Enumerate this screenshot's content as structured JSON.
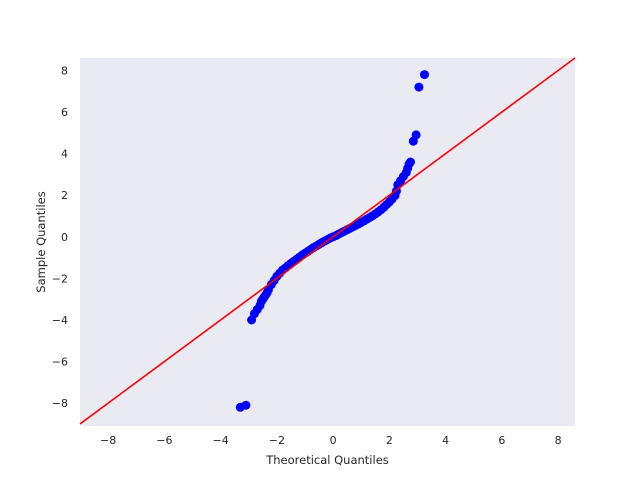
{
  "chart_data": {
    "type": "scatter",
    "title": "",
    "xlabel": "Theoretical Quantiles",
    "ylabel": "Sample Quantiles",
    "xlim": [
      -9.0,
      8.6
    ],
    "ylim": [
      -9.1,
      8.6
    ],
    "xticks": [
      -8,
      -6,
      -4,
      -2,
      0,
      2,
      4,
      6,
      8
    ],
    "yticks": [
      -8,
      -6,
      -4,
      -2,
      0,
      2,
      4,
      6,
      8
    ],
    "xtick_labels": [
      "−8",
      "−6",
      "−4",
      "−2",
      "0",
      "2",
      "4",
      "6",
      "8"
    ],
    "ytick_labels": [
      "−8",
      "−6",
      "−4",
      "−2",
      "0",
      "2",
      "4",
      "6",
      "8"
    ],
    "grid": false,
    "background": "#eaeaf2",
    "reference_line": {
      "slope": 1,
      "intercept": 0,
      "color": "#ff0000"
    },
    "series": [
      {
        "color": "#0000ff",
        "points": [
          [
            -3.3,
            -8.2
          ],
          [
            -3.1,
            -8.1
          ],
          [
            -2.9,
            -4.0
          ],
          [
            -2.8,
            -3.7
          ],
          [
            -2.7,
            -3.5
          ],
          [
            -2.6,
            -3.3
          ],
          [
            -2.55,
            -3.1
          ],
          [
            -2.5,
            -3.0
          ],
          [
            -2.45,
            -2.9
          ],
          [
            -2.4,
            -2.8
          ],
          [
            -2.35,
            -2.7
          ],
          [
            -2.3,
            -2.55
          ],
          [
            -2.2,
            -2.3
          ],
          [
            -2.1,
            -2.1
          ],
          [
            -2.0,
            -1.9
          ],
          [
            -1.9,
            -1.75
          ],
          [
            -1.8,
            -1.6
          ],
          [
            -1.7,
            -1.5
          ],
          [
            -1.6,
            -1.38
          ],
          [
            -1.5,
            -1.28
          ],
          [
            -1.4,
            -1.18
          ],
          [
            -1.3,
            -1.08
          ],
          [
            -1.2,
            -0.98
          ],
          [
            -1.1,
            -0.88
          ],
          [
            -1.0,
            -0.79
          ],
          [
            -0.9,
            -0.7
          ],
          [
            -0.8,
            -0.61
          ],
          [
            -0.7,
            -0.52
          ],
          [
            -0.6,
            -0.44
          ],
          [
            -0.5,
            -0.36
          ],
          [
            -0.4,
            -0.28
          ],
          [
            -0.3,
            -0.2
          ],
          [
            -0.2,
            -0.13
          ],
          [
            -0.1,
            -0.06
          ],
          [
            0.0,
            0.0
          ],
          [
            0.1,
            0.06
          ],
          [
            0.2,
            0.13
          ],
          [
            0.3,
            0.2
          ],
          [
            0.4,
            0.27
          ],
          [
            0.5,
            0.34
          ],
          [
            0.6,
            0.41
          ],
          [
            0.7,
            0.48
          ],
          [
            0.8,
            0.55
          ],
          [
            0.9,
            0.62
          ],
          [
            1.0,
            0.69
          ],
          [
            1.1,
            0.77
          ],
          [
            1.2,
            0.85
          ],
          [
            1.3,
            0.93
          ],
          [
            1.4,
            1.01
          ],
          [
            1.5,
            1.1
          ],
          [
            1.6,
            1.2
          ],
          [
            1.7,
            1.3
          ],
          [
            1.8,
            1.42
          ],
          [
            1.9,
            1.55
          ],
          [
            2.0,
            1.68
          ],
          [
            2.1,
            1.82
          ],
          [
            2.2,
            1.98
          ],
          [
            2.25,
            2.2
          ],
          [
            2.3,
            2.5
          ],
          [
            2.4,
            2.7
          ],
          [
            2.5,
            2.9
          ],
          [
            2.6,
            3.1
          ],
          [
            2.65,
            3.3
          ],
          [
            2.7,
            3.5
          ],
          [
            2.75,
            3.6
          ],
          [
            2.85,
            4.6
          ],
          [
            2.95,
            4.9
          ],
          [
            3.05,
            7.2
          ],
          [
            3.25,
            7.8
          ]
        ]
      }
    ]
  }
}
